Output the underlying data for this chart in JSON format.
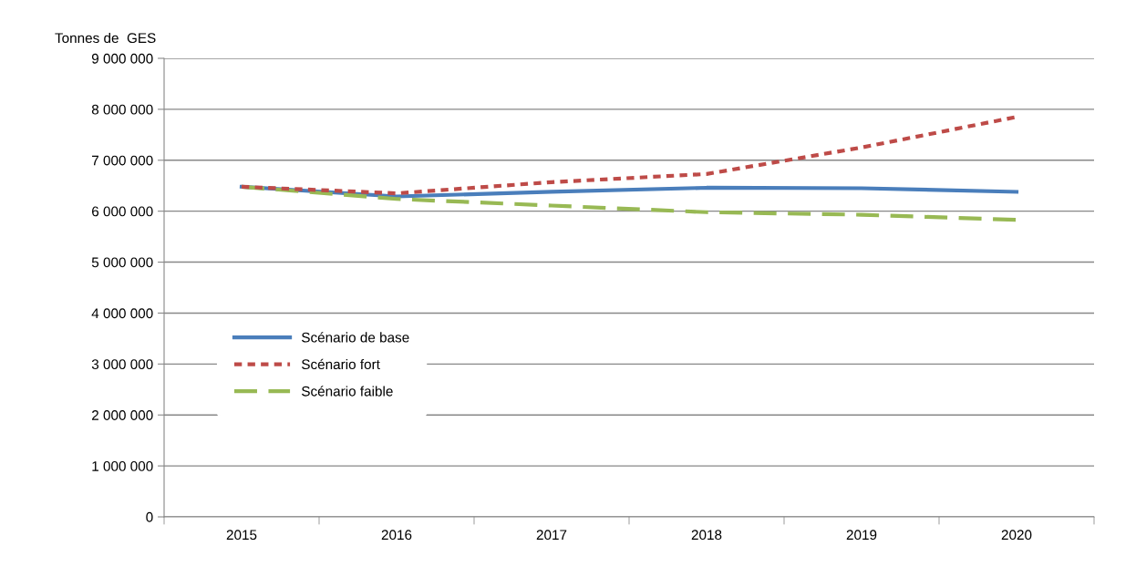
{
  "chart_data": {
    "type": "line",
    "ylabel": "Tonnes de  GES",
    "categories": [
      "2015",
      "2016",
      "2017",
      "2018",
      "2019",
      "2020"
    ],
    "series": [
      {
        "name": "Scénario de base",
        "color": "#4a7ebb",
        "line_style": "solid",
        "values": [
          6480000,
          6290000,
          6380000,
          6460000,
          6450000,
          6380000
        ]
      },
      {
        "name": "Scénario fort",
        "color": "#be4b48",
        "line_style": "dotted",
        "values": [
          6480000,
          6350000,
          6570000,
          6730000,
          7250000,
          7850000
        ]
      },
      {
        "name": "Scénario faible",
        "color": "#98b954",
        "line_style": "dashed",
        "values": [
          6480000,
          6240000,
          6110000,
          5980000,
          5930000,
          5830000
        ]
      }
    ],
    "ylim": [
      0,
      9000000
    ],
    "yticks": [
      {
        "value": 0,
        "label": "0"
      },
      {
        "value": 1000000,
        "label": "1 000 000"
      },
      {
        "value": 2000000,
        "label": "2 000 000"
      },
      {
        "value": 3000000,
        "label": "3 000 000"
      },
      {
        "value": 4000000,
        "label": "4 000 000"
      },
      {
        "value": 5000000,
        "label": "5 000 000"
      },
      {
        "value": 6000000,
        "label": "6 000 000"
      },
      {
        "value": 7000000,
        "label": "7 000 000"
      },
      {
        "value": 8000000,
        "label": "8 000 000"
      },
      {
        "value": 9000000,
        "label": "9 000 000"
      }
    ],
    "grid": "y",
    "legend": "left",
    "marker": "none"
  }
}
